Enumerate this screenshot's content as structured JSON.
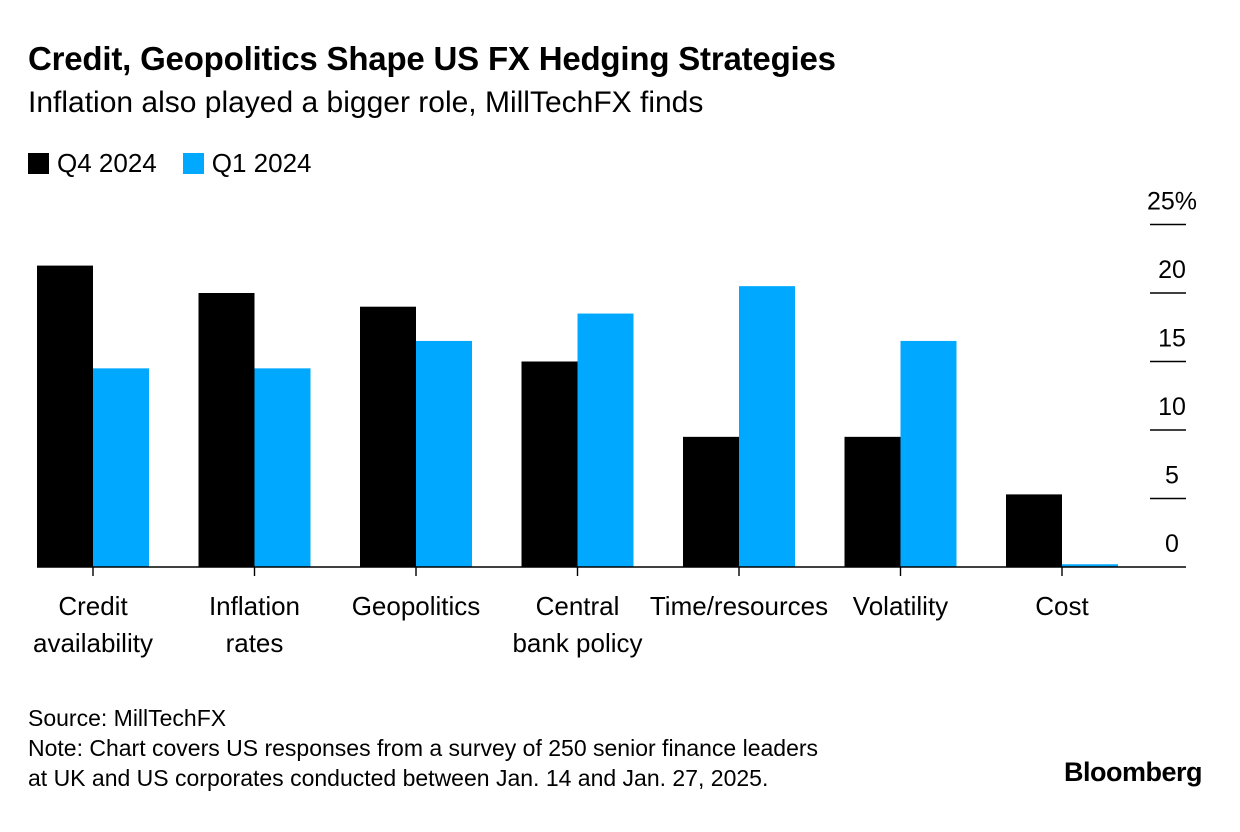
{
  "header": {
    "title": "Credit, Geopolitics Shape US FX Hedging Strategies",
    "subtitle": "Inflation also played a bigger role, MillTechFX finds"
  },
  "legend": [
    {
      "label": "Q4 2024",
      "color": "#000000"
    },
    {
      "label": "Q1 2024",
      "color": "#00a8ff"
    }
  ],
  "chart_data": {
    "type": "bar",
    "categories": [
      [
        "Credit",
        "availability"
      ],
      [
        "Inflation",
        "rates"
      ],
      [
        "Geopolitics"
      ],
      [
        "Central",
        "bank policy"
      ],
      [
        "Time/resources"
      ],
      [
        "Volatility"
      ],
      [
        "Cost"
      ]
    ],
    "series": [
      {
        "name": "Q4 2024",
        "color": "#000000",
        "values": [
          22,
          20,
          19,
          15,
          9.5,
          9.5,
          5.3
        ]
      },
      {
        "name": "Q1 2024",
        "color": "#00a8ff",
        "values": [
          14.5,
          14.5,
          16.5,
          18.5,
          20.5,
          16.5,
          0.2
        ]
      }
    ],
    "y_ticks": [
      "0",
      "5",
      "10",
      "15",
      "20",
      "25%"
    ],
    "ylim": [
      0,
      25
    ],
    "ylabel": "",
    "xlabel": ""
  },
  "footer": {
    "source": "Source: MillTechFX",
    "note_line1": "Note: Chart covers US responses from a survey of 250 senior finance leaders",
    "note_line2": "at UK and US corporates conducted between Jan. 14 and Jan. 27, 2025.",
    "brand": "Bloomberg"
  }
}
